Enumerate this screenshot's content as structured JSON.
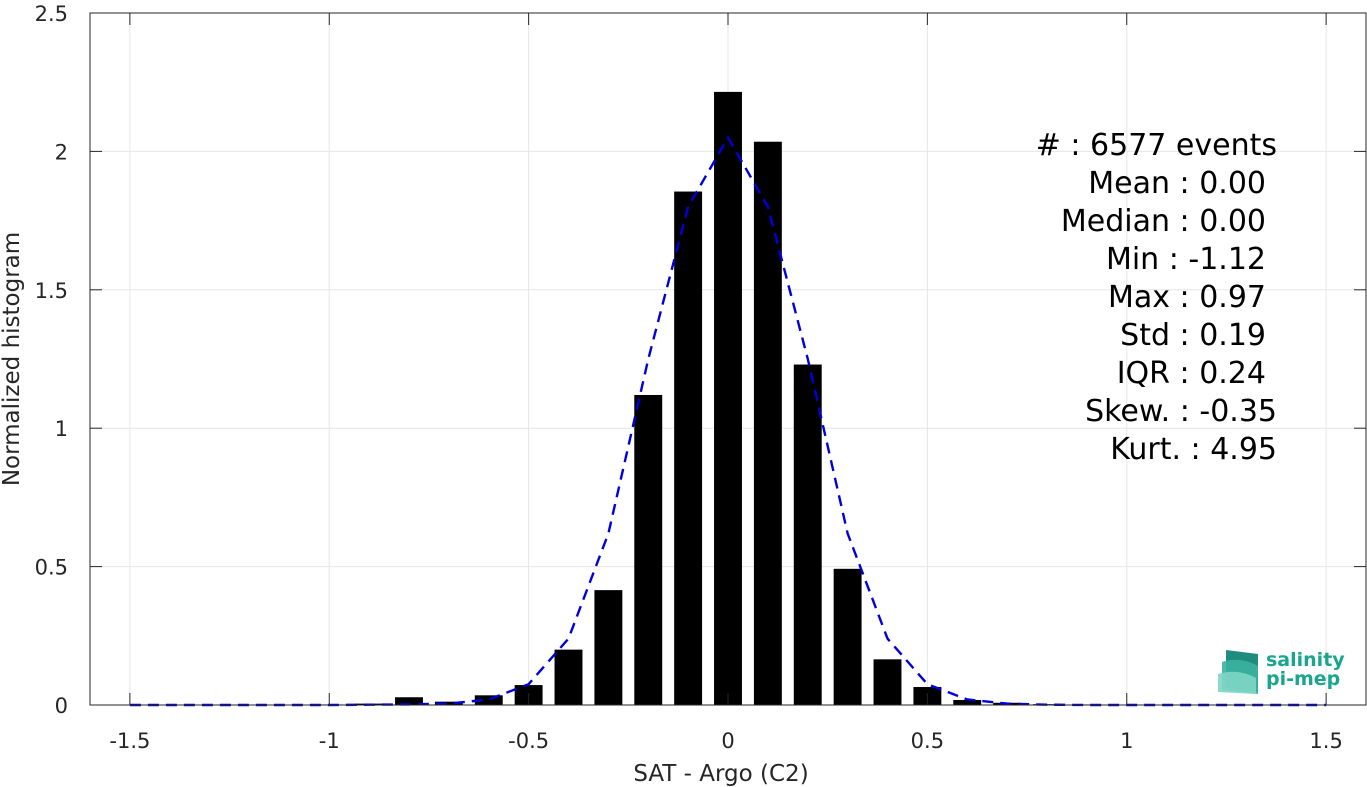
{
  "chart_data": {
    "type": "bar",
    "xlabel": "SAT - Argo (C2)",
    "ylabel": "Normalized histogram",
    "xlim": [
      -1.6,
      1.6
    ],
    "ylim": [
      0,
      2.5
    ],
    "x_ticks": [
      -1.5,
      -1,
      -0.5,
      0,
      0.5,
      1,
      1.5
    ],
    "x_tick_labels": [
      "-1.5",
      "-1",
      "-0.5",
      "0",
      "0.5",
      "1",
      "1.5"
    ],
    "y_ticks": [
      0,
      0.5,
      1,
      1.5,
      2,
      2.5
    ],
    "y_tick_labels": [
      "0",
      "0.5",
      "1",
      "1.5",
      "2",
      "2.5"
    ],
    "grid": true,
    "bar_width": 0.07,
    "bars": {
      "x": [
        -1.5,
        -1.4,
        -1.3,
        -1.2,
        -1.1,
        -1.0,
        -0.9,
        -0.8,
        -0.7,
        -0.6,
        -0.5,
        -0.4,
        -0.3,
        -0.2,
        -0.1,
        0.0,
        0.1,
        0.2,
        0.3,
        0.4,
        0.5,
        0.6,
        0.7,
        0.8,
        0.9,
        1.0,
        1.1,
        1.2,
        1.3,
        1.4,
        1.5
      ],
      "values": [
        0.0,
        0.0,
        0.0,
        0.0,
        0.0,
        0.002,
        0.005,
        0.028,
        0.012,
        0.035,
        0.072,
        0.2,
        0.415,
        1.12,
        1.855,
        2.215,
        2.035,
        1.23,
        0.492,
        0.165,
        0.065,
        0.018,
        0.008,
        0.003,
        0.002,
        0.001,
        0.0,
        0.0,
        0.0,
        0.0,
        0.0
      ],
      "color": "#000000"
    },
    "fit_curve": {
      "style": "dashed",
      "color": "#0000dd",
      "x": [
        -1.5,
        -1.4,
        -1.3,
        -1.2,
        -1.1,
        -1.0,
        -0.9,
        -0.8,
        -0.7,
        -0.6,
        -0.5,
        -0.4,
        -0.3,
        -0.2,
        -0.1,
        0.0,
        0.1,
        0.2,
        0.3,
        0.4,
        0.5,
        0.6,
        0.7,
        0.8,
        0.9,
        1.0,
        1.1,
        1.2,
        1.3,
        1.4,
        1.5
      ],
      "values": [
        0.0,
        0.0,
        0.0,
        0.0,
        0.0,
        0.0,
        0.001,
        0.002,
        0.005,
        0.02,
        0.075,
        0.24,
        0.62,
        1.25,
        1.8,
        2.05,
        1.8,
        1.25,
        0.62,
        0.24,
        0.075,
        0.02,
        0.005,
        0.001,
        0.0,
        0.0,
        0.0,
        0.0,
        0.0,
        0.0,
        0.0
      ]
    },
    "annotations": [
      "#  : 6577 events",
      "Mean : 0.00",
      "Median : 0.00",
      "Min : -1.12",
      "Max : 0.97",
      "Std : 0.19",
      "IQR : 0.24",
      "Skew. : -0.35",
      "Kurt. : 4.95"
    ]
  },
  "logo": {
    "line1": "salinity",
    "line2": "pi-mep",
    "color": "#1aa58f"
  }
}
